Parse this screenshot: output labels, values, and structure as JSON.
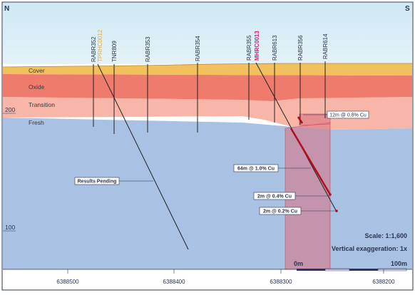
{
  "corners": {
    "left": "N",
    "right": "S"
  },
  "layers": [
    {
      "name": "cover",
      "label": "Cover",
      "color": "#f2c15e"
    },
    {
      "name": "oxide",
      "label": "Oxide",
      "color": "#ee7b6b"
    },
    {
      "name": "transition",
      "label": "Transition",
      "color": "#f7b6a8"
    },
    {
      "name": "fresh",
      "label": "Fresh",
      "color": "#a9c1e3"
    }
  ],
  "elevation_labels": [
    "200",
    "100"
  ],
  "easting_labels": [
    "6388500",
    "6388400",
    "6388300",
    "6388200"
  ],
  "drillholes": [
    {
      "name": "RABR352",
      "label_color": "#2b3550"
    },
    {
      "name": "TPRHC0012",
      "label_color": "#e8a640"
    },
    {
      "name": "TNR809",
      "label_color": "#2b3550"
    },
    {
      "name": "RABR353",
      "label_color": "#2b3550"
    },
    {
      "name": "RABR354",
      "label_color": "#2b3550"
    },
    {
      "name": "RABR355",
      "label_color": "#2b3550"
    },
    {
      "name": "MHRC0013",
      "label_color": "#e8157a"
    },
    {
      "name": "RABR613",
      "label_color": "#2b3550"
    },
    {
      "name": "RABR356",
      "label_color": "#2b3550"
    },
    {
      "name": "RABR614",
      "label_color": "#2b3550"
    }
  ],
  "callouts": {
    "results_pending": "Results Pending",
    "intercept_12m": "12m @ 0.8% Cu",
    "intercept_64m": "64m @ 1.0% Cu",
    "intercept_2m_a": "2m @ 0.4% Cu",
    "intercept_2m_b": "2m @ 0.2% Cu"
  },
  "scale": {
    "ratio": "Scale: 1:1,600",
    "exaggeration": "Vertical exaggeration: 1x",
    "bar_start": "0m",
    "bar_end": "100m"
  },
  "colors": {
    "frame": "#2b3550",
    "mineralised_zone": "#d9707e",
    "high_grade_trace": "#b01020"
  }
}
